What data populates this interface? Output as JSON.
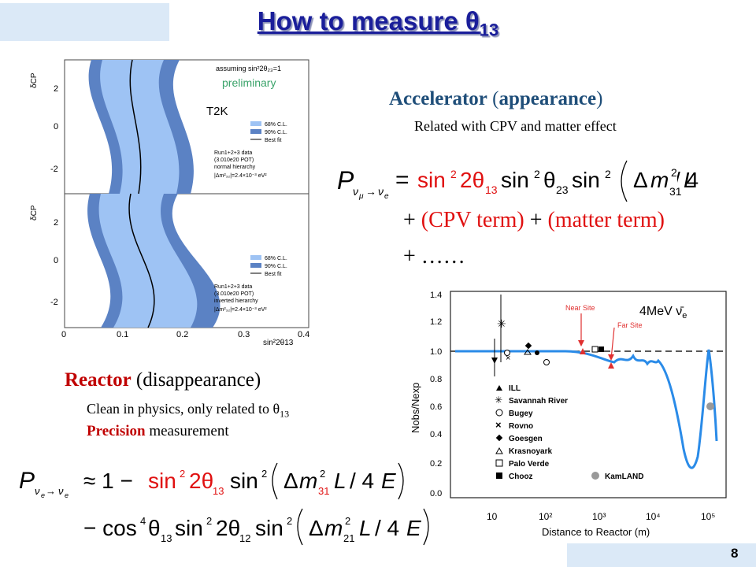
{
  "title": "How to measure θ",
  "title_sub": "13",
  "page_number": "8",
  "accelerator": {
    "heading_bold": "Accelerator",
    "heading_paren_open": " (",
    "heading_mode": "appearance",
    "heading_paren_close": ")",
    "subtitle": "Related with CPV and matter effect",
    "formula_line2_cpv": "(CPV term)",
    "formula_line2_matter": "(matter term)",
    "formula_line3": "+ ……"
  },
  "reactor": {
    "heading_bold": "Reactor",
    "heading_rest": " (disappearance)",
    "line1": "Clean in physics, only related to θ",
    "line1_sub": "13",
    "line2_bold": "Precision",
    "line2_rest": " measurement"
  },
  "t2k_plot": {
    "label": "T2K",
    "top_annotation": "assuming sin²2θ₂₃=1",
    "preliminary": "preliminary",
    "legend": [
      "68% C.L.",
      "90% C.L.",
      "Best fit"
    ],
    "info_normal": [
      "Run1+2+3 data",
      "(3.010e20 POT)",
      "normal hierarchy",
      "|Δm²₃₂|=2.4×10⁻³ eV²"
    ],
    "info_inverted": [
      "Run1+2+3 data",
      "(3.010e20 POT)",
      "inverted hierarchy",
      "|Δm²₃₂|=2.4×10⁻³ eV²"
    ],
    "ylabel": "δCP",
    "xlabel": "sin²2θ13",
    "y_ticks": [
      "2",
      "0",
      "-2"
    ],
    "x_ticks": [
      "0",
      "0.1",
      "0.2",
      "0.3",
      "0.4"
    ],
    "colors": {
      "band68": "#9ec3f4",
      "band90": "#5b82c4"
    }
  },
  "reactor_plot": {
    "energy_label": "4MeV ν̄",
    "energy_label_sub": "e",
    "ylabel": "Nobs/Nexp",
    "xlabel": "Distance to Reactor (m)",
    "y_ticks": [
      "1.4",
      "1.2",
      "1.0",
      "0.8",
      "0.6",
      "0.4",
      "0.2",
      "0.0"
    ],
    "x_ticks": [
      "10",
      "10²",
      "10³",
      "10⁴",
      "10⁵"
    ],
    "near_site": "Near Site",
    "far_site": "Far Site",
    "legend": [
      "ILL",
      "Savannah River",
      "Bugey",
      "Rovno",
      "Goesgen",
      "Krasnoyark",
      "Palo Verde",
      "Chooz",
      "KamLAND"
    ],
    "colors": {
      "curve": "#2a8be8",
      "sites": "#e03030",
      "kamland": "#999999"
    }
  }
}
